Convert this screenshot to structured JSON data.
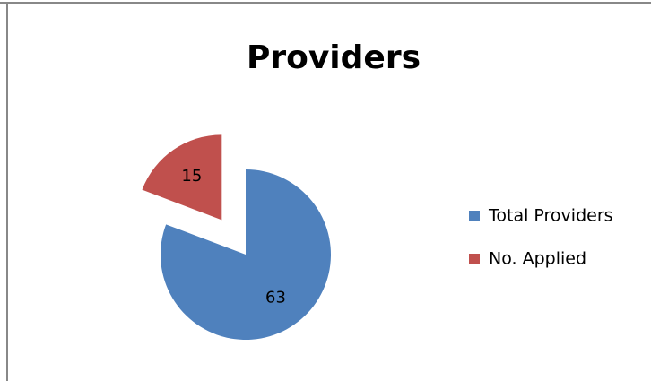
{
  "chart_data": {
    "type": "pie",
    "title": "Providers",
    "categories": [
      "Total Providers",
      "No. Applied"
    ],
    "values": [
      63,
      15
    ],
    "colors": [
      "#4f81bd",
      "#c0504d"
    ],
    "legend": "right",
    "exploded": [
      false,
      true
    ]
  }
}
